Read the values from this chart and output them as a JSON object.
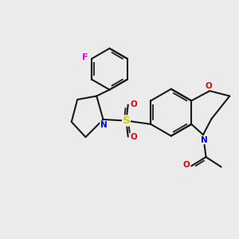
{
  "background_color": "#ebebeb",
  "bond_color": "#1a1a1a",
  "bond_width": 1.5,
  "atom_colors": {
    "F": "#ee00ee",
    "N": "#0000ee",
    "O": "#ee0000",
    "S": "#cccc00"
  },
  "figsize": [
    3.0,
    3.0
  ],
  "dpi": 100
}
